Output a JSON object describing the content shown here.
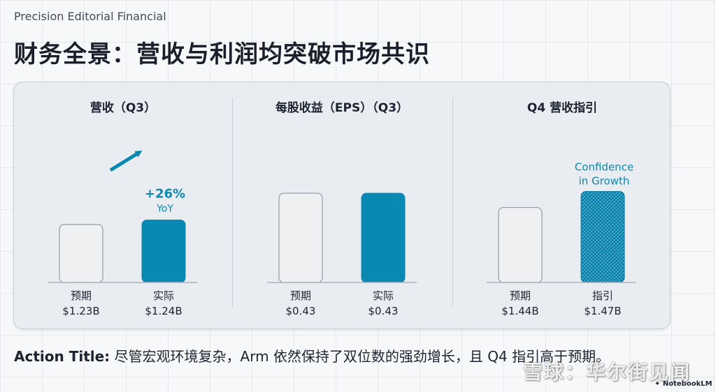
{
  "header": {
    "brand": "Precision Editorial Financial",
    "title": "财务全景：营收与利润均突破市场共识"
  },
  "colors": {
    "accent": "#0a88b4",
    "estimate_fill": "#eef0f2",
    "estimate_stroke": "#9aa1ab",
    "text": "#1d2330"
  },
  "chart_data": [
    {
      "type": "bar",
      "title": "营收（Q3）",
      "categories": [
        "预期",
        "实际"
      ],
      "value_labels": [
        "$1.23B",
        "$1.24B"
      ],
      "values": [
        1.23,
        1.24
      ],
      "unit": "B USD",
      "annotation": {
        "line1": "+26%",
        "line2": "YoY"
      }
    },
    {
      "type": "bar",
      "title": "每股收益（EPS）（Q3）",
      "categories": [
        "预期",
        "实际"
      ],
      "value_labels": [
        "$0.43",
        "$0.43"
      ],
      "values": [
        0.43,
        0.43
      ],
      "unit": "USD"
    },
    {
      "type": "bar",
      "title": "Q4 营收指引",
      "categories": [
        "预期",
        "指引"
      ],
      "value_labels": [
        "$1.44B",
        "$1.47B"
      ],
      "values": [
        1.44,
        1.47
      ],
      "unit": "B USD",
      "annotation": {
        "line1": "Confidence",
        "line2": "in Growth"
      }
    }
  ],
  "footer": {
    "label": "Action Title:",
    "text": " 尽管宏观环境复杂，Arm 依然保持了双位数的强劲增长，且 Q4 指引高于预期。"
  },
  "watermark": "雪球：华尔街见闻",
  "badge": "NotebookLM"
}
